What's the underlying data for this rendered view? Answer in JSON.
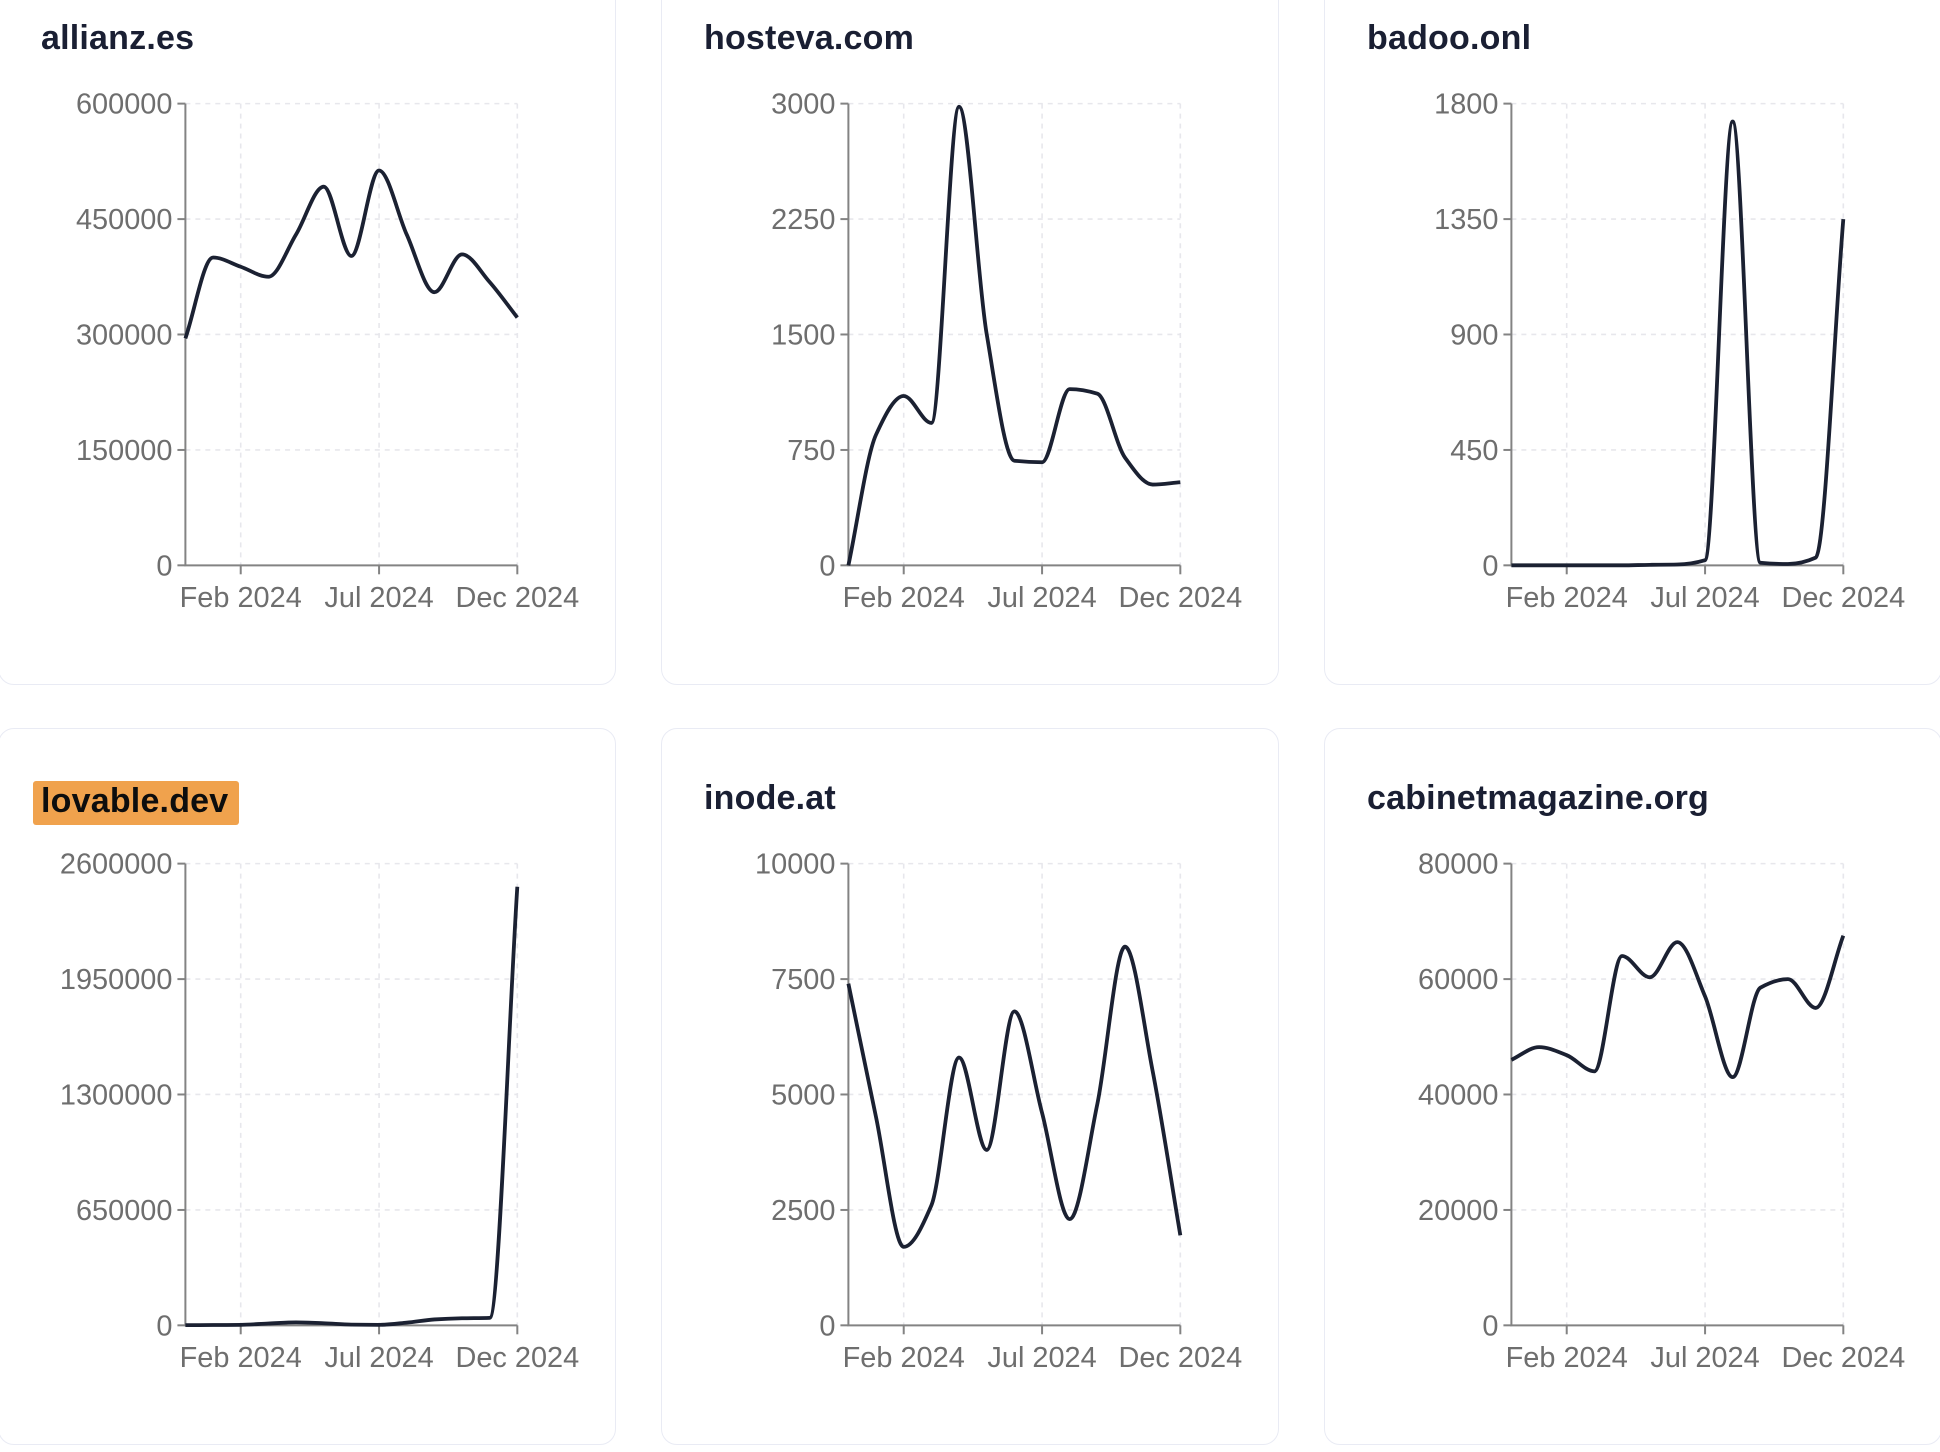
{
  "theme": {
    "page_background": "#ffffff",
    "card_background": "#ffffff",
    "card_border_color": "#e9ebf4",
    "title_color": "#1a1f33",
    "line_color": "#1b2132",
    "axis_color": "#838383",
    "tick_label_color": "#6e6e6e",
    "grid_color": "#e7e7ec",
    "highlight_color": "#f0a24d",
    "highlight_text_color": "#0d0d0d"
  },
  "chart_data": [
    {
      "type": "line",
      "title": "allianz.es",
      "highlighted": false,
      "x": [
        "Dec 2023",
        "Jan 2024",
        "Feb 2024",
        "Mar 2024",
        "Apr 2024",
        "May 2024",
        "Jun 2024",
        "Jul 2024",
        "Aug 2024",
        "Sep 2024",
        "Oct 2024",
        "Nov 2024",
        "Dec 2024"
      ],
      "values": [
        295000,
        400000,
        388000,
        375000,
        430000,
        492000,
        402000,
        513000,
        430000,
        355000,
        404000,
        368000,
        322000
      ],
      "ylim": [
        0,
        600000
      ],
      "y_ticks": [
        0,
        150000,
        300000,
        450000,
        600000
      ],
      "x_tick_labels": [
        "Feb 2024",
        "Jul 2024",
        "Dec 2024"
      ],
      "x_tick_indices": [
        2,
        7,
        12
      ],
      "grid": true,
      "legend": false
    },
    {
      "type": "line",
      "title": "hosteva.com",
      "highlighted": false,
      "x": [
        "Dec 2023",
        "Jan 2024",
        "Feb 2024",
        "Mar 2024",
        "Apr 2024",
        "May 2024",
        "Jun 2024",
        "Jul 2024",
        "Aug 2024",
        "Sep 2024",
        "Oct 2024",
        "Nov 2024",
        "Dec 2024"
      ],
      "values": [
        0,
        850,
        1100,
        925,
        2980,
        1500,
        680,
        670,
        1145,
        1115,
        700,
        525,
        540
      ],
      "ylim": [
        0,
        3000
      ],
      "y_ticks": [
        0,
        750,
        1500,
        2250,
        3000
      ],
      "x_tick_labels": [
        "Feb 2024",
        "Jul 2024",
        "Dec 2024"
      ],
      "x_tick_indices": [
        2,
        7,
        12
      ],
      "grid": true,
      "legend": false
    },
    {
      "type": "line",
      "title": "badoo.onl",
      "highlighted": false,
      "x": [
        "Dec 2023",
        "Jan 2024",
        "Feb 2024",
        "Mar 2024",
        "Apr 2024",
        "May 2024",
        "Jun 2024",
        "Jul 2024",
        "Aug 2024",
        "Sep 2024",
        "Oct 2024",
        "Nov 2024",
        "Dec 2024"
      ],
      "values": [
        0,
        0,
        0,
        0,
        0,
        2,
        3,
        20,
        1730,
        10,
        5,
        30,
        1350
      ],
      "ylim": [
        0,
        1800
      ],
      "y_ticks": [
        0,
        450,
        900,
        1350,
        1800
      ],
      "x_tick_labels": [
        "Feb 2024",
        "Jul 2024",
        "Dec 2024"
      ],
      "x_tick_indices": [
        2,
        7,
        12
      ],
      "grid": true,
      "legend": false
    },
    {
      "type": "line",
      "title": "lovable.dev",
      "highlighted": true,
      "x": [
        "Dec 2023",
        "Jan 2024",
        "Feb 2024",
        "Mar 2024",
        "Apr 2024",
        "May 2024",
        "Jun 2024",
        "Jul 2024",
        "Aug 2024",
        "Sep 2024",
        "Oct 2024",
        "Nov 2024",
        "Dec 2024"
      ],
      "values": [
        1000,
        1500,
        3000,
        10000,
        17000,
        12000,
        4000,
        3000,
        15000,
        33000,
        40000,
        42000,
        2470000
      ],
      "ylim": [
        0,
        2600000
      ],
      "y_ticks": [
        0,
        650000,
        1300000,
        1950000,
        2600000
      ],
      "x_tick_labels": [
        "Feb 2024",
        "Jul 2024",
        "Dec 2024"
      ],
      "x_tick_indices": [
        2,
        7,
        12
      ],
      "grid": true,
      "legend": false
    },
    {
      "type": "line",
      "title": "inode.at",
      "highlighted": false,
      "x": [
        "Dec 2023",
        "Jan 2024",
        "Feb 2024",
        "Mar 2024",
        "Apr 2024",
        "May 2024",
        "Jun 2024",
        "Jul 2024",
        "Aug 2024",
        "Sep 2024",
        "Oct 2024",
        "Nov 2024",
        "Dec 2024"
      ],
      "values": [
        7400,
        4500,
        1700,
        2600,
        5800,
        3800,
        6800,
        4600,
        2300,
        4800,
        8200,
        5500,
        1950
      ],
      "ylim": [
        0,
        10000
      ],
      "y_ticks": [
        0,
        2500,
        5000,
        7500,
        10000
      ],
      "x_tick_labels": [
        "Feb 2024",
        "Jul 2024",
        "Dec 2024"
      ],
      "x_tick_indices": [
        2,
        7,
        12
      ],
      "grid": true,
      "legend": false
    },
    {
      "type": "line",
      "title": "cabinetmagazine.org",
      "highlighted": false,
      "x": [
        "Dec 2023",
        "Jan 2024",
        "Feb 2024",
        "Mar 2024",
        "Apr 2024",
        "May 2024",
        "Jun 2024",
        "Jul 2024",
        "Aug 2024",
        "Sep 2024",
        "Oct 2024",
        "Nov 2024",
        "Dec 2024"
      ],
      "values": [
        46000,
        48200,
        46800,
        44000,
        64000,
        60300,
        66400,
        57000,
        43000,
        58500,
        60000,
        55000,
        67500
      ],
      "ylim": [
        0,
        80000
      ],
      "y_ticks": [
        0,
        20000,
        40000,
        60000,
        80000
      ],
      "x_tick_labels": [
        "Feb 2024",
        "Jul 2024",
        "Dec 2024"
      ],
      "x_tick_indices": [
        2,
        7,
        12
      ],
      "grid": true,
      "legend": false
    }
  ]
}
